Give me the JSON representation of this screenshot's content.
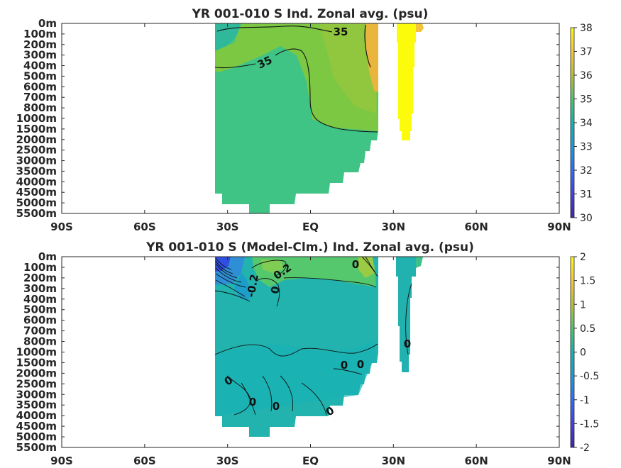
{
  "chart_data": [
    {
      "type": "heatmap",
      "title": "YR 001-010 S Ind. Zonal avg. (psu)",
      "xlabel": "",
      "ylabel": "",
      "x_ticks": [
        "90S",
        "60S",
        "30S",
        "EQ",
        "30N",
        "60N",
        "90N"
      ],
      "x_values": [
        -90,
        -60,
        -30,
        0,
        30,
        60,
        90
      ],
      "y_ticks": [
        "0m",
        "100m",
        "200m",
        "300m",
        "400m",
        "500m",
        "600m",
        "700m",
        "800m",
        "1000m",
        "1500m",
        "2000m",
        "2500m",
        "3000m",
        "3500m",
        "4000m",
        "4500m",
        "5000m",
        "5500m"
      ],
      "colorbar": {
        "min": 30,
        "max": 38,
        "ticks": [
          "30",
          "31",
          "32",
          "33",
          "34",
          "35",
          "36",
          "37",
          "38"
        ]
      },
      "contour_labels": [
        "35",
        "35"
      ],
      "data_extent": {
        "lat_range": [
          -35,
          42
        ],
        "depth_max_m": 5500
      },
      "colors": {
        "background": "#ffffff",
        "dominant": "#3cc283",
        "high": "#fbe700",
        "mid_high": "#7ac946"
      }
    },
    {
      "type": "heatmap",
      "title": "YR 001-010 S (Model-Clm.) Ind. Zonal avg. (psu)",
      "xlabel": "",
      "ylabel": "",
      "x_ticks": [
        "90S",
        "60S",
        "30S",
        "EQ",
        "30N",
        "60N",
        "90N"
      ],
      "x_values": [
        -90,
        -60,
        -30,
        0,
        30,
        60,
        90
      ],
      "y_ticks": [
        "0m",
        "100m",
        "200m",
        "300m",
        "400m",
        "500m",
        "600m",
        "700m",
        "800m",
        "1000m",
        "1500m",
        "2000m",
        "2500m",
        "3000m",
        "3500m",
        "4000m",
        "4500m",
        "5000m",
        "5500m"
      ],
      "colorbar": {
        "min": -2,
        "max": 2,
        "ticks": [
          "-2",
          "-1.5",
          "-1",
          "-0.5",
          "0",
          "0.5",
          "1",
          "1.5",
          "2"
        ]
      },
      "contour_labels": [
        "0.2",
        "0",
        "-0.2",
        "0",
        "0",
        "0",
        "0",
        "0",
        "0",
        "0",
        "0"
      ],
      "data_extent": {
        "lat_range": [
          -35,
          42
        ],
        "depth_max_m": 5500
      },
      "colors": {
        "background": "#ffffff",
        "dominant": "#1fb1b1",
        "negative": "#2d8fd4",
        "positive": "#5bc86a"
      }
    }
  ]
}
